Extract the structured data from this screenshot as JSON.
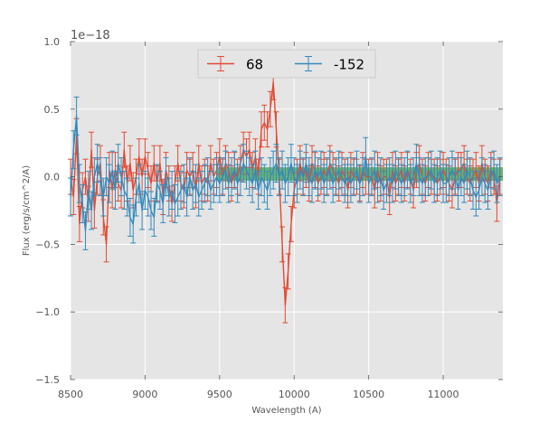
{
  "chart_data": {
    "type": "line",
    "xlabel": "Wavelength (A)",
    "ylabel": "Flux (erg/s/cm^2/A)",
    "y_offset_label": "1e−18",
    "xlim": [
      8500,
      11400
    ],
    "ylim": [
      -1.5,
      1.0
    ],
    "x_ticks": [
      8500,
      9000,
      9500,
      10000,
      10500,
      11000
    ],
    "x_tick_labels": [
      "8500",
      "9000",
      "9500",
      "10000",
      "10500",
      "11000"
    ],
    "y_ticks": [
      -1.5,
      -1.0,
      -0.5,
      0.0,
      0.5,
      1.0
    ],
    "y_tick_labels": [
      "−1.5",
      "−1.0",
      "−0.5",
      "0.0",
      "0.5",
      "1.0"
    ],
    "grid": true,
    "legend_position": "top-center",
    "band": {
      "x_start": 9480,
      "x_end": 11400,
      "y_low": -0.03,
      "y_high": 0.07,
      "color": "#3fa04a"
    },
    "series": [
      {
        "name": "68",
        "color": "#e24a33",
        "x": [
          8500,
          8520,
          8540,
          8560,
          8580,
          8600,
          8620,
          8640,
          8660,
          8680,
          8700,
          8720,
          8740,
          8760,
          8780,
          8800,
          8820,
          8840,
          8860,
          8880,
          8900,
          8920,
          8940,
          8960,
          8980,
          9000,
          9020,
          9040,
          9060,
          9080,
          9100,
          9120,
          9140,
          9160,
          9180,
          9200,
          9220,
          9240,
          9260,
          9280,
          9300,
          9320,
          9340,
          9360,
          9380,
          9400,
          9420,
          9440,
          9460,
          9480,
          9500,
          9520,
          9540,
          9560,
          9580,
          9600,
          9620,
          9640,
          9660,
          9680,
          9700,
          9720,
          9740,
          9760,
          9780,
          9800,
          9820,
          9840,
          9860,
          9880,
          9900,
          9920,
          9940,
          9960,
          9980,
          10000,
          10020,
          10040,
          10060,
          10080,
          10100,
          10120,
          10140,
          10160,
          10180,
          10200,
          10220,
          10240,
          10260,
          10280,
          10300,
          10320,
          10340,
          10360,
          10380,
          10400,
          10420,
          10440,
          10460,
          10480,
          10500,
          10520,
          10540,
          10560,
          10580,
          10600,
          10620,
          10640,
          10660,
          10680,
          10700,
          10720,
          10740,
          10760,
          10780,
          10800,
          10820,
          10840,
          10860,
          10880,
          10900,
          10920,
          10940,
          10960,
          10980,
          11000,
          11020,
          11040,
          11060,
          11080,
          11100,
          11120,
          11140,
          11160,
          11180,
          11200,
          11220,
          11240,
          11260,
          11280,
          11300,
          11320,
          11340,
          11360,
          11380
        ],
        "y": [
          0.0,
          -0.15,
          0.3,
          -0.35,
          -0.1,
          0.0,
          -0.2,
          0.2,
          -0.25,
          0.0,
          0.1,
          -0.3,
          -0.5,
          0.05,
          -0.1,
          0.05,
          -0.05,
          -0.1,
          0.2,
          -0.05,
          0.1,
          -0.1,
          0.0,
          0.15,
          0.0,
          0.15,
          0.05,
          -0.05,
          0.1,
          -0.05,
          0.1,
          -0.15,
          0.05,
          -0.05,
          -0.2,
          -0.05,
          0.1,
          -0.05,
          -0.1,
          0.05,
          0.0,
          0.05,
          -0.1,
          0.1,
          -0.05,
          0.0,
          -0.05,
          0.1,
          0.0,
          0.05,
          0.15,
          0.0,
          0.1,
          0.05,
          -0.05,
          0.05,
          0.0,
          0.1,
          0.2,
          0.15,
          0.2,
          0.05,
          0.15,
          0.0,
          0.35,
          0.4,
          0.35,
          0.5,
          0.7,
          0.35,
          0.0,
          -0.5,
          -0.95,
          -0.7,
          -0.35,
          -0.1,
          0.0,
          0.1,
          0.0,
          0.05,
          -0.05,
          0.1,
          0.05,
          -0.05,
          0.0,
          0.05,
          0.0,
          0.1,
          0.05,
          0.0,
          -0.05,
          0.05,
          0.0,
          -0.1,
          0.05,
          0.0,
          0.0,
          -0.05,
          0.05,
          0.0,
          0.0,
          0.0,
          -0.1,
          0.05,
          -0.05,
          0.0,
          0.0,
          -0.15,
          0.05,
          -0.05,
          0.0,
          0.05,
          -0.05,
          0.05,
          0.0,
          -0.1,
          0.05,
          0.1,
          0.0,
          -0.05,
          0.05,
          0.0,
          0.0,
          -0.05,
          0.0,
          0.05,
          0.0,
          -0.05,
          -0.1,
          0.0,
          0.05,
          0.05,
          0.1,
          0.0,
          -0.05,
          0.0,
          0.05,
          -0.05,
          0.1,
          0.0,
          -0.05,
          0.05,
          0.0,
          -0.2,
          0.0
        ],
        "err": 0.13
      },
      {
        "name": "-152",
        "color": "#348abd",
        "x": [
          8500,
          8520,
          8540,
          8560,
          8580,
          8600,
          8620,
          8640,
          8660,
          8680,
          8700,
          8720,
          8740,
          8760,
          8780,
          8800,
          8820,
          8840,
          8860,
          8880,
          8900,
          8920,
          8940,
          8960,
          8980,
          9000,
          9020,
          9040,
          9060,
          9080,
          9100,
          9120,
          9140,
          9160,
          9180,
          9200,
          9220,
          9240,
          9260,
          9280,
          9300,
          9320,
          9340,
          9360,
          9380,
          9400,
          9420,
          9440,
          9460,
          9480,
          9500,
          9520,
          9540,
          9560,
          9580,
          9600,
          9620,
          9640,
          9660,
          9680,
          9700,
          9720,
          9740,
          9760,
          9780,
          9800,
          9820,
          9840,
          9860,
          9880,
          9900,
          9920,
          9940,
          9960,
          9980,
          10000,
          10020,
          10040,
          10060,
          10080,
          10100,
          10120,
          10140,
          10160,
          10180,
          10200,
          10220,
          10240,
          10260,
          10280,
          10300,
          10320,
          10340,
          10360,
          10380,
          10400,
          10420,
          10440,
          10460,
          10480,
          10500,
          10520,
          10540,
          10560,
          10580,
          10600,
          10620,
          10640,
          10660,
          10680,
          10700,
          10720,
          10740,
          10760,
          10780,
          10800,
          10820,
          10840,
          10860,
          10880,
          10900,
          10920,
          10940,
          10960,
          10980,
          11000,
          11020,
          11040,
          11060,
          11080,
          11100,
          11120,
          11140,
          11160,
          11180,
          11200,
          11220,
          11240,
          11260,
          11280,
          11300,
          11320,
          11340,
          11360,
          11380
        ],
        "y": [
          -0.15,
          0.2,
          0.45,
          -0.05,
          -0.2,
          -0.4,
          -0.1,
          -0.25,
          0.0,
          0.1,
          0.0,
          -0.15,
          0.0,
          -0.05,
          0.05,
          -0.1,
          0.1,
          0.0,
          -0.1,
          -0.15,
          -0.3,
          -0.35,
          -0.15,
          -0.05,
          -0.25,
          -0.1,
          -0.15,
          -0.25,
          -0.3,
          -0.05,
          -0.1,
          -0.2,
          0.0,
          -0.15,
          -0.1,
          -0.2,
          -0.15,
          -0.1,
          -0.05,
          -0.15,
          0.0,
          -0.1,
          -0.05,
          -0.15,
          -0.1,
          -0.05,
          0.0,
          -0.1,
          -0.05,
          0.0,
          -0.05,
          0.0,
          0.05,
          -0.05,
          0.0,
          0.05,
          -0.05,
          0.0,
          0.1,
          0.05,
          0.0,
          -0.05,
          0.05,
          -0.1,
          0.0,
          -0.05,
          -0.1,
          0.0,
          0.05,
          0.1,
          0.0,
          0.05,
          -0.05,
          0.0,
          0.1,
          0.0,
          -0.05,
          0.05,
          0.0,
          0.1,
          0.0,
          -0.05,
          0.05,
          0.0,
          0.05,
          -0.05,
          0.0,
          0.05,
          -0.05,
          0.0,
          0.05,
          0.0,
          -0.05,
          0.0,
          -0.05,
          0.0,
          0.05,
          -0.05,
          0.0,
          0.15,
          -0.05,
          0.0,
          0.05,
          -0.05,
          0.0,
          -0.1,
          -0.05,
          0.0,
          -0.05,
          0.05,
          0.0,
          -0.05,
          0.0,
          0.05,
          -0.05,
          0.0,
          0.1,
          0.0,
          -0.05,
          0.0,
          0.0,
          0.05,
          -0.05,
          0.0,
          0.05,
          -0.05,
          -0.05,
          0.0,
          0.05,
          0.0,
          -0.1,
          0.0,
          -0.05,
          0.05,
          0.0,
          -0.1,
          -0.15,
          -0.1,
          0.0,
          -0.05,
          -0.1,
          0.0,
          0.05,
          -0.05,
          0.0
        ],
        "err": 0.14
      }
    ]
  }
}
